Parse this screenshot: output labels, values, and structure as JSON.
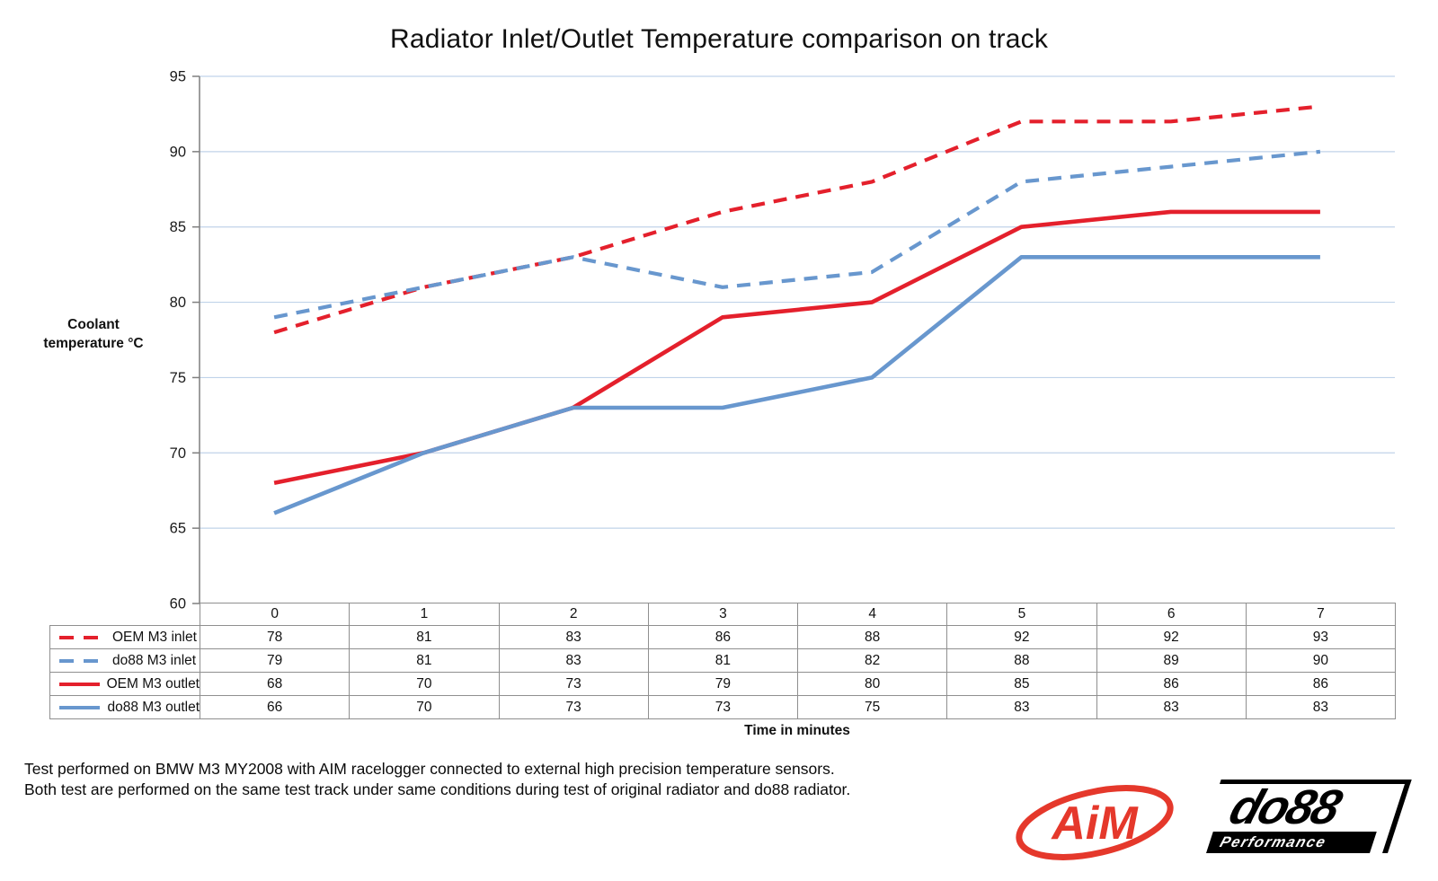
{
  "page": {
    "footer_line1": "Test performed on BMW M3 MY2008 with AIM racelogger connected to external high precision temperature sensors.",
    "footer_line2": "Both test are performed on the same test track under same conditions during test of original radiator and do88 radiator."
  },
  "logos": {
    "aim": {
      "text": "AiM",
      "color": "#e5382b"
    },
    "do88": {
      "text": "do88",
      "subtext": "Performance",
      "color": "#000000"
    }
  },
  "chart_data": {
    "type": "line",
    "title": "Radiator Inlet/Outlet Temperature comparison on track",
    "xlabel": "Time in minutes",
    "ylabel": "Coolant temperature °C",
    "ylabel_lines": [
      "Coolant",
      "temperature °C"
    ],
    "categories": [
      "0",
      "1",
      "2",
      "3",
      "4",
      "5",
      "6",
      "7"
    ],
    "ylim": [
      60,
      95
    ],
    "ytick_step": 5,
    "grid": true,
    "legend_position": "data-table-left",
    "series": [
      {
        "name": "OEM M3 inlet",
        "color": "#e4202c",
        "dash": true,
        "values": [
          78,
          81,
          83,
          86,
          88,
          92,
          92,
          93
        ]
      },
      {
        "name": "do88 M3 inlet",
        "color": "#6897ce",
        "dash": true,
        "values": [
          79,
          81,
          83,
          81,
          82,
          88,
          89,
          90
        ]
      },
      {
        "name": "OEM M3 outlet",
        "color": "#e4202c",
        "dash": false,
        "values": [
          68,
          70,
          73,
          79,
          80,
          85,
          86,
          86
        ]
      },
      {
        "name": "do88 M3 outlet",
        "color": "#6897ce",
        "dash": false,
        "values": [
          66,
          70,
          73,
          73,
          75,
          83,
          83,
          83
        ]
      }
    ],
    "colors": {
      "gridline": "#c0d3e9",
      "axis": "#7f7f7f",
      "table_border": "#8f8f8f",
      "tick_label": "#1a1a1a"
    }
  }
}
